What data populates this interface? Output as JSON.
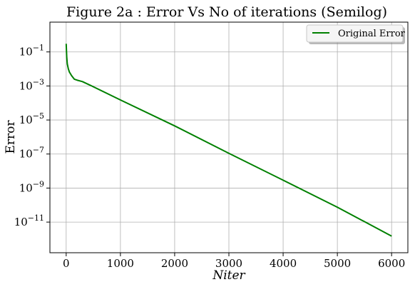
{
  "chart_data": {
    "type": "line",
    "title": "Figure 2a : Error Vs No of iterations (Semilog)",
    "xlabel": "Niter",
    "ylabel": "Error",
    "yscale": "log",
    "xlim": [
      -300,
      6300
    ],
    "ylim_exp": [
      -12.8,
      0.75
    ],
    "grid": true,
    "legend_position": "upper right",
    "xticks": [
      0,
      1000,
      2000,
      3000,
      4000,
      5000,
      6000
    ],
    "xtick_labels": [
      "0",
      "1000",
      "2000",
      "3000",
      "4000",
      "5000",
      "6000"
    ],
    "ytick_exponents": [
      -1,
      -3,
      -5,
      -7,
      -9,
      -11
    ],
    "ytick_labels": [
      {
        "base": "10",
        "exp": "−1"
      },
      {
        "base": "10",
        "exp": "−3"
      },
      {
        "base": "10",
        "exp": "−5"
      },
      {
        "base": "10",
        "exp": "−7"
      },
      {
        "base": "10",
        "exp": "−9"
      },
      {
        "base": "10",
        "exp": "−11"
      }
    ],
    "series": [
      {
        "name": "Original Error",
        "color": "#008000",
        "x": [
          0,
          10,
          20,
          40,
          60,
          100,
          150,
          200,
          300,
          500,
          1000,
          2000,
          3000,
          4000,
          5000,
          6000
        ],
        "y": [
          0.3,
          0.05,
          0.02,
          0.01,
          0.0065,
          0.004,
          0.0025,
          0.0022,
          0.0018,
          0.0009,
          0.00015,
          4.5e-06,
          1.1e-07,
          2.9e-09,
          7.5e-11,
          1.5e-12
        ]
      }
    ]
  }
}
